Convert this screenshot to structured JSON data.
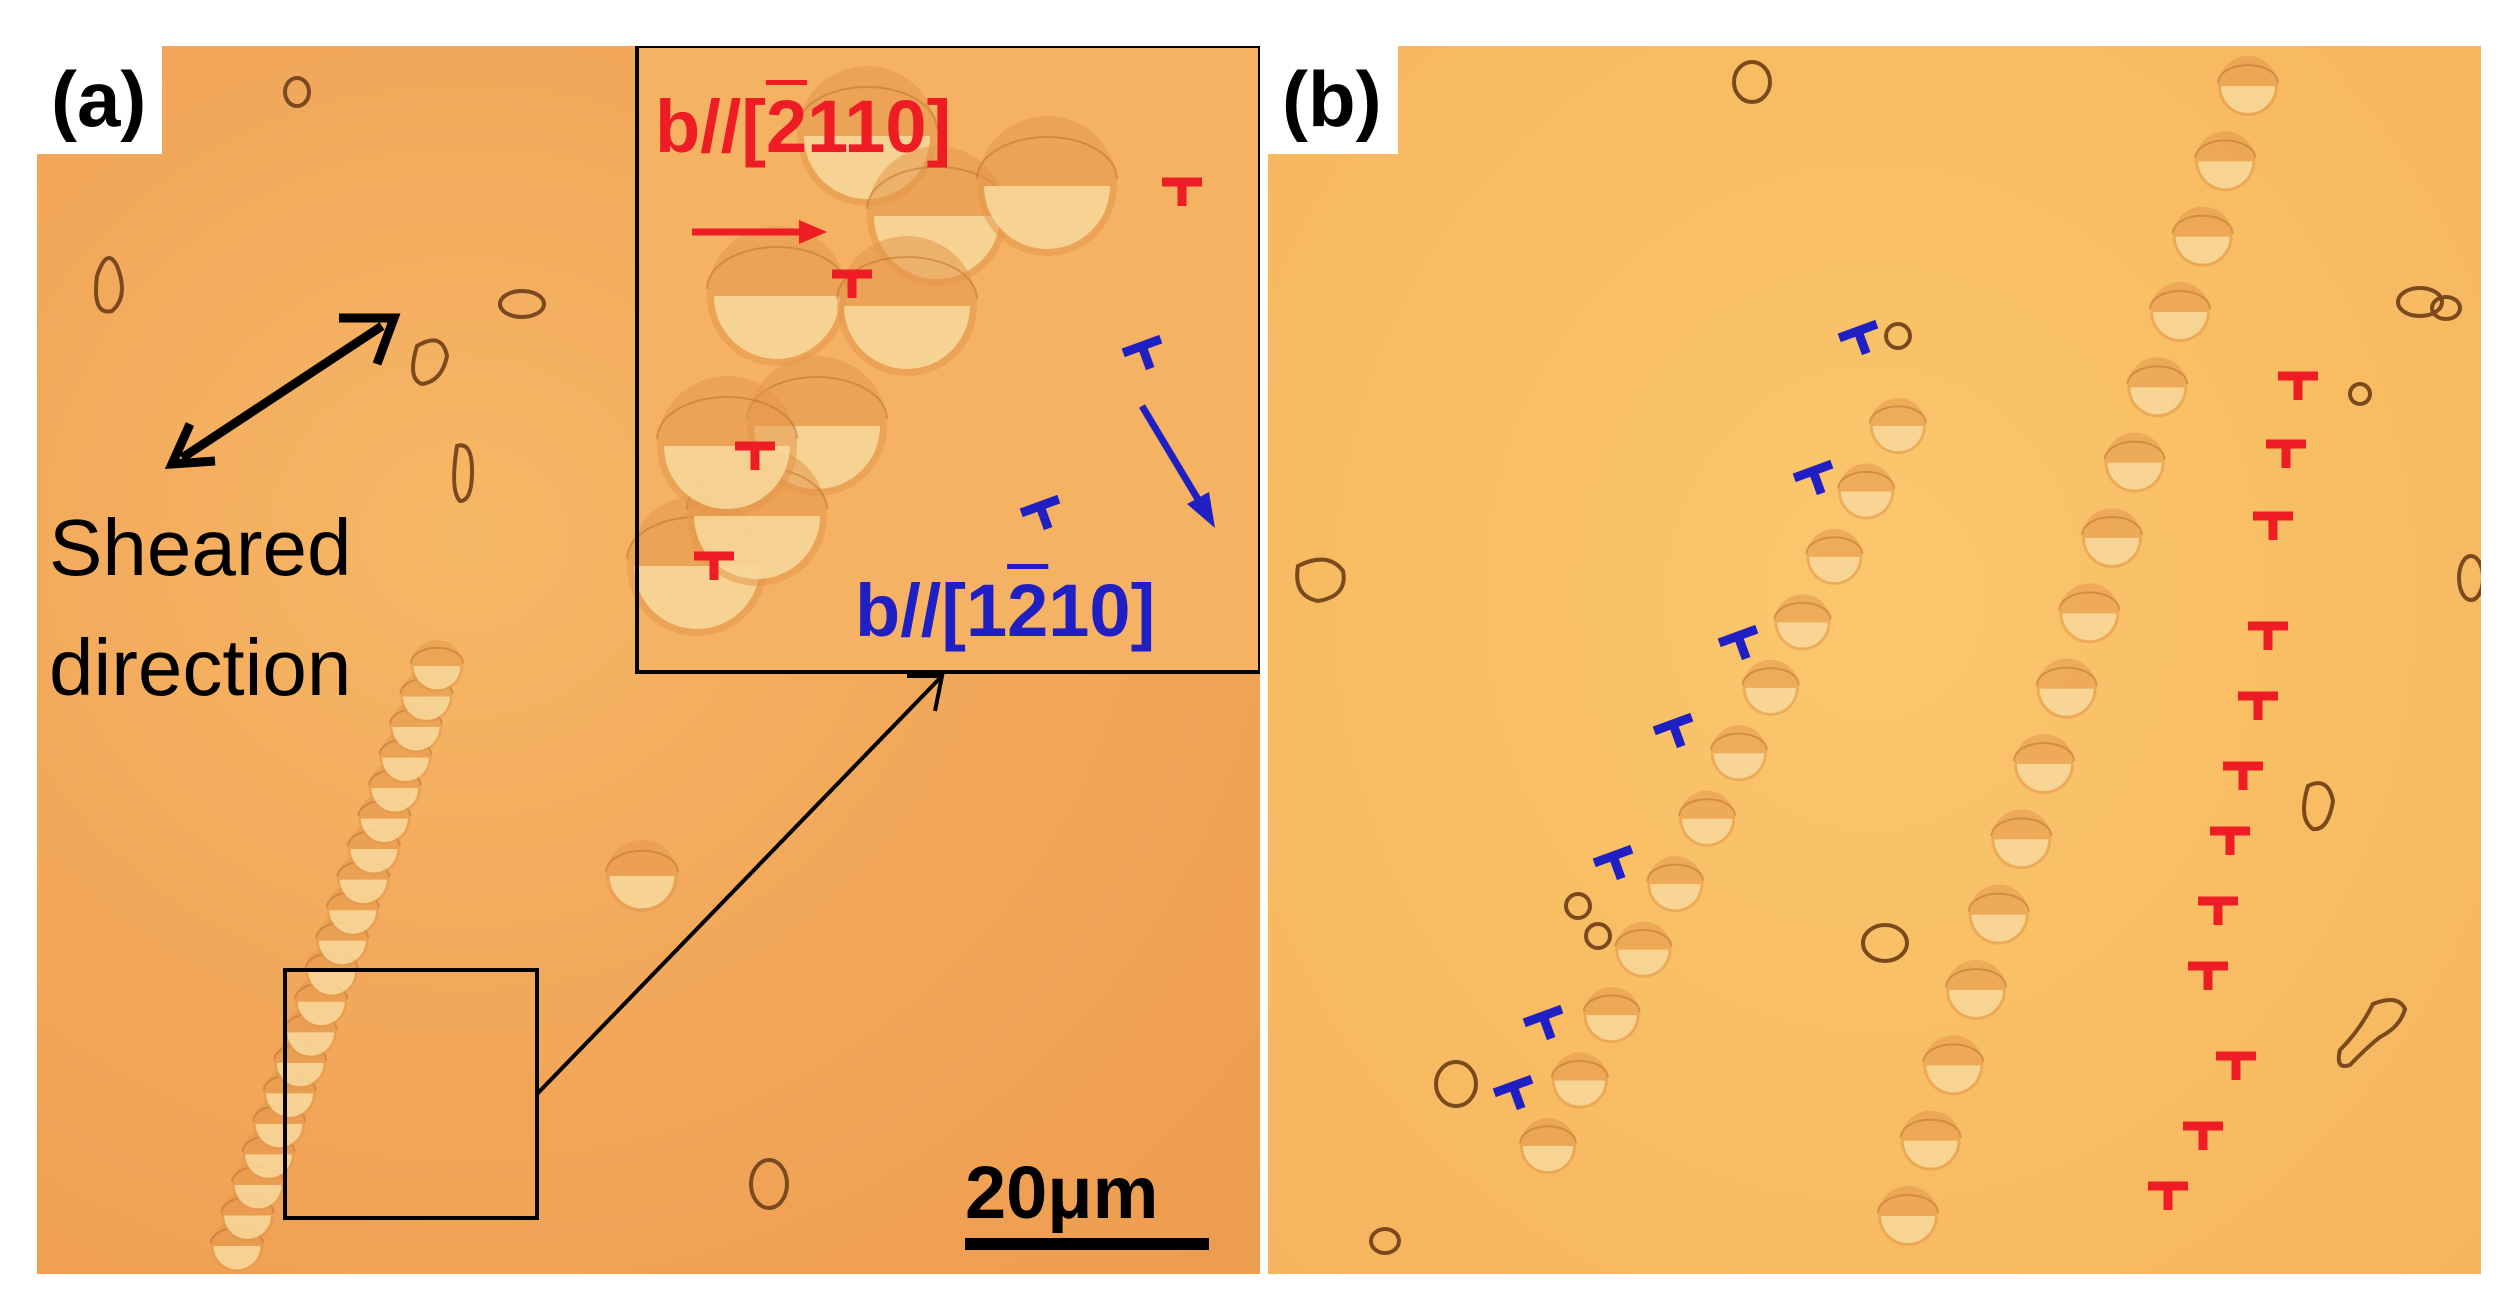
{
  "panels": [
    {
      "label": "(a)",
      "annotation": [
        "Sheared",
        "direction"
      ],
      "inset": {
        "burgers_red": {
          "prefix": "b//[",
          "bar_digit": "2",
          "rest": "110]"
        },
        "burgers_blue": {
          "prefix": "b//[1",
          "bar_digit": "2",
          "rest": "10]"
        }
      },
      "scale_bar": "20μm"
    },
    {
      "label": "(b)"
    }
  ],
  "colors": {
    "edge_dislocation_red": "#ee1c24",
    "edge_dislocation_blue": "#1f1fc4",
    "background_a": "#f2a85a",
    "background_b": "#f9c064"
  }
}
